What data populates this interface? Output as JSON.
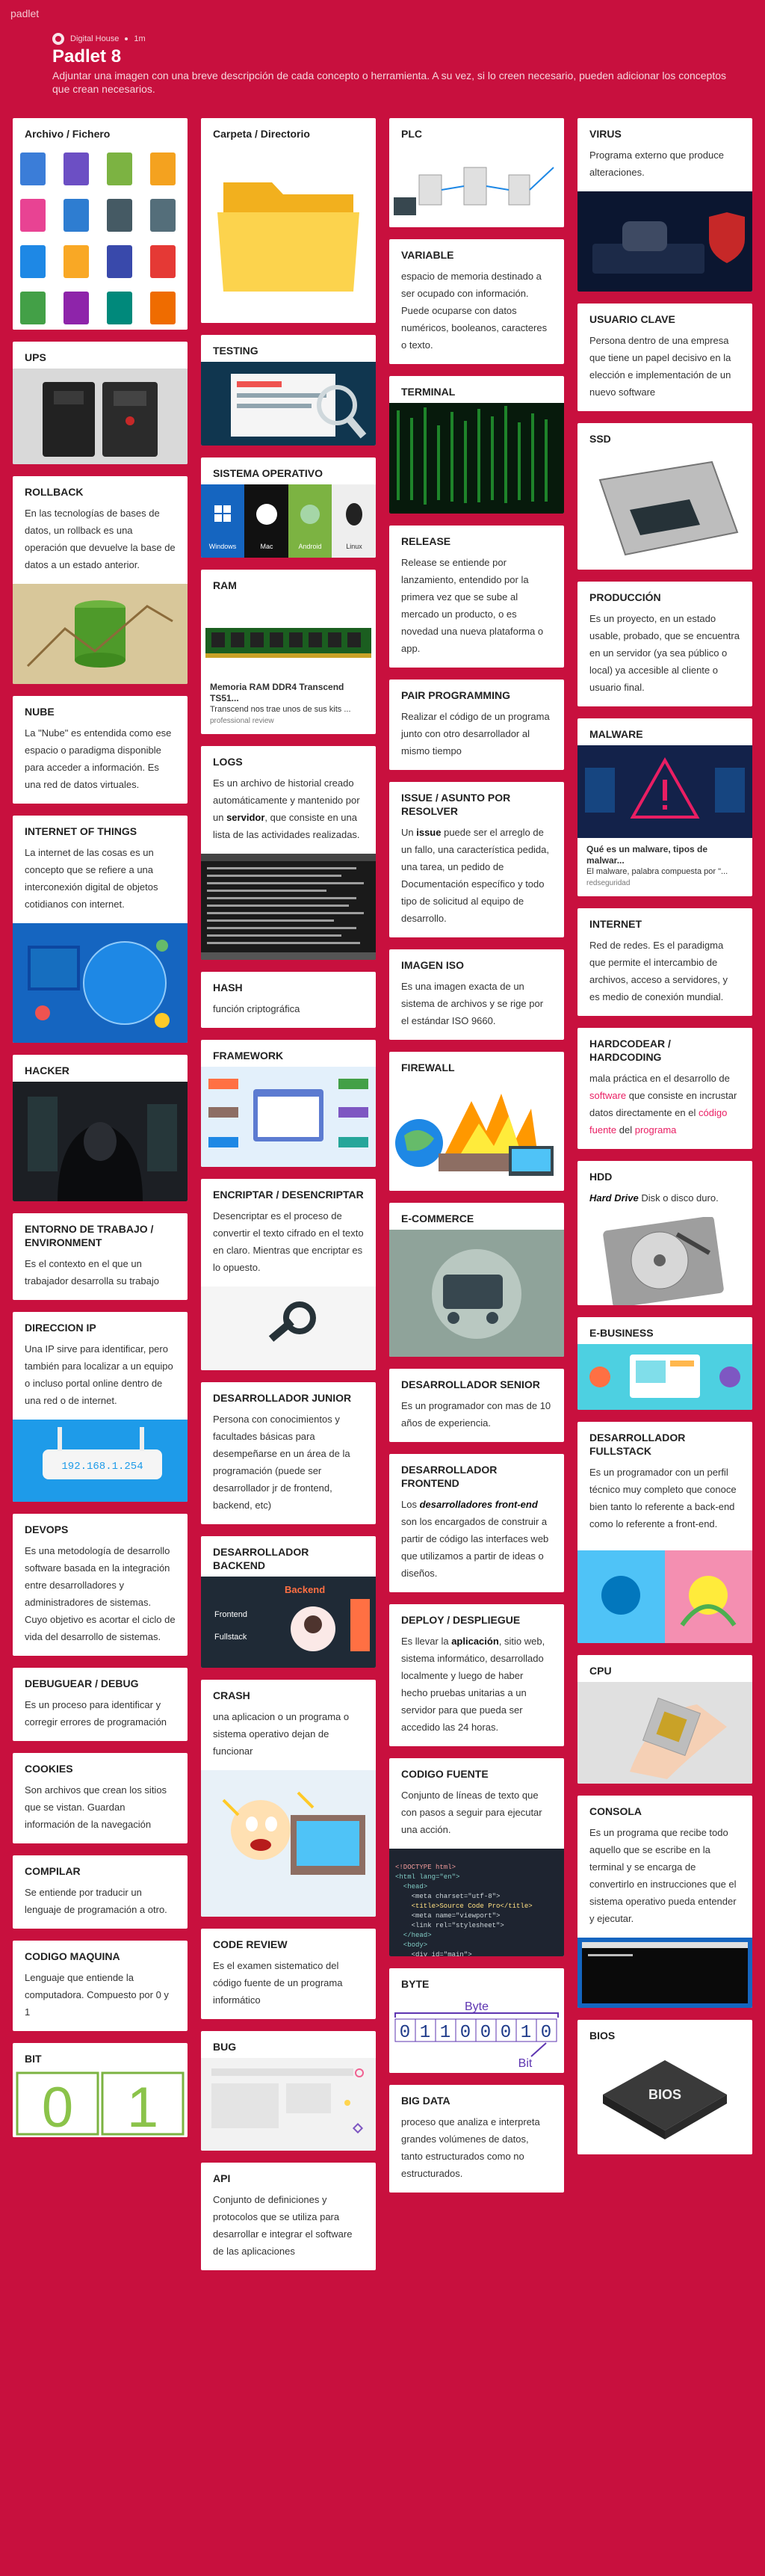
{
  "app": {
    "name": "padlet"
  },
  "board": {
    "author": "Digital House",
    "age": "1m",
    "title": "Padlet 8",
    "description": "Adjuntar una imagen con una breve descripción de cada concepto o herramienta. A su vez, si lo creen necesario, pueden adicionar los conceptos que crean necesarios."
  },
  "colors": {
    "background": "#c8103e",
    "accent": "#e91e63",
    "card": "#ffffff"
  },
  "col1": [
    {
      "title": "Archivo / Fichero"
    },
    {
      "title": "UPS"
    },
    {
      "title": "ROLLBACK",
      "body": "En las tecnologías de bases de datos, un rollback es una operación que devuelve la base de datos a un estado anterior."
    },
    {
      "title": "NUBE",
      "body": "La \"Nube\" es entendida como ese espacio o paradigma disponible para acceder a información. Es una red de datos virtuales."
    },
    {
      "title": "INTERNET OF THINGS",
      "body": "La internet de las cosas  es un concepto que se refiere a una interconexión digital de objetos cotidianos con internet."
    },
    {
      "title": "HACKER"
    },
    {
      "title": "ENTORNO DE TRABAJO / ENVIRONMENT",
      "body": "Es el contexto en el que un trabajador desarrolla su trabajo"
    },
    {
      "title": "DIRECCION IP",
      "body": "Una IP sirve para identificar, pero también para localizar a un equipo o incluso portal online dentro de una red o de internet.",
      "image_text": "192.168.1.254"
    },
    {
      "title": "DEVOPS",
      "body": "Es una metodología de desarrollo software basada en la integración entre desarrolladores y administradores de sistemas. Cuyo objetivo es acortar el ciclo de vida del desarrollo de sistemas."
    },
    {
      "title": "DEBUGUEAR / DEBUG",
      "body": "Es un proceso para identificar y corregir errores de programación"
    },
    {
      "title": "COOKIES",
      "body": "Son archivos que crean los sitios que se vistan. Guardan información de la navegación"
    },
    {
      "title": "COMPILAR",
      "body": "Se entiende por traducir un lenguaje de programación a otro."
    },
    {
      "title": "CODIGO MAQUINA",
      "body": "Lenguaje que entiende la computadora. Compuesto por 0 y 1"
    },
    {
      "title": "BIT",
      "image_text": [
        "0",
        "1"
      ]
    }
  ],
  "col2": [
    {
      "title": "Carpeta / Directorio"
    },
    {
      "title": "TESTING"
    },
    {
      "title": "SISTEMA OPERATIVO",
      "image_text": [
        "Windows",
        "Mac",
        "Android",
        "Linux"
      ]
    },
    {
      "title": "RAM",
      "link_title": "Memoria RAM DDR4 Transcend TS51...",
      "link_desc": "Transcend nos trae unos de sus kits ...",
      "link_source": "professional review"
    },
    {
      "title": "LOGS",
      "body_parts": [
        "Es un archivo de historial creado automáticamente y mantenido por un ",
        "servidor",
        ", que consiste en una lista de las actividades realizadas."
      ]
    },
    {
      "title": "HASH",
      "body": "función criptográfica"
    },
    {
      "title": "FRAMEWORK"
    },
    {
      "title": "ENCRIPTAR / DESENCRIPTAR",
      "body": "Desencriptar es el proceso de convertir el texto cifrado en el texto en claro. Mientras que encriptar es lo opuesto."
    },
    {
      "title": "DESARROLLADOR JUNIOR",
      "body": "Persona con conocimientos y facultades básicas para desempeñarse en un área de la programación (puede ser desarrollador jr de frontend, backend, etc)"
    },
    {
      "title": "DESARROLLADOR BACKEND",
      "image_text": [
        "Backend",
        "Frontend",
        "Fullstack"
      ]
    },
    {
      "title": "CRASH",
      "body": "una aplicacion o un programa o sistema operativo dejan de funcionar"
    },
    {
      "title": "CODE REVIEW",
      "body": "Es el examen sistematico del código fuente de un programa informático"
    },
    {
      "title": "BUG"
    },
    {
      "title": "API",
      "body": "Conjunto de definiciones y protocolos que se utiliza para desarrollar e integrar el software de las aplicaciones"
    }
  ],
  "col3": [
    {
      "title": "PLC"
    },
    {
      "title": "VARIABLE",
      "body": "espacio de memoria destinado a ser ocupado con información. Puede ocuparse con datos numéricos, booleanos, caracteres o texto."
    },
    {
      "title": "TERMINAL"
    },
    {
      "title": "RELEASE",
      "body": "Release se entiende por lanzamiento, entendido por la primera vez que se sube al mercado un producto, o es novedad una nueva plataforma o app."
    },
    {
      "title": "PAIR PROGRAMMING",
      "body": "Realizar el código de un programa junto con otro desarrollador al mismo tiempo"
    },
    {
      "title": "ISSUE / ASUNTO POR RESOLVER",
      "body_parts": [
        "Un ",
        "issue",
        " puede ser el arreglo de un fallo, una característica pedida, una tarea, un pedido de Documentación específico y todo tipo de solicitud al equipo de desarrollo."
      ]
    },
    {
      "title": "IMAGEN ISO",
      "body": "Es una imagen exacta de un sistema de archivos y se rige por el estándar ISO 9660."
    },
    {
      "title": "FIREWALL"
    },
    {
      "title": "E-COMMERCE"
    },
    {
      "title": "DESARROLLADOR SENIOR",
      "body": "Es un programador con mas de 10 años de experiencia."
    },
    {
      "title": "DESARROLLADOR FRONTEND",
      "body_parts": [
        "Los ",
        "desarrolladores front-end",
        " son los encargados de construir a partir de código las interfaces web que utilizamos a partir de ideas o diseños."
      ]
    },
    {
      "title": "DEPLOY / DESPLIEGUE",
      "body_parts": [
        "Es llevar la ",
        "aplicación",
        ", sitio web, sistema informático, desarrollado localmente y luego de haber hecho pruebas unitarias a un servidor para que pueda ser accedido las 24 horas."
      ]
    },
    {
      "title": "CODIGO FUENTE",
      "body": "Conjunto de líneas de texto que con pasos a seguir para ejecutar una acción.",
      "code_lines": [
        "<!DOCTYPE html>",
        "<html lang=\"en\">",
        "  <head>",
        "    <meta charset=\"utf-8\">",
        "    <title>Source Code Pro</title>",
        "    <meta name=\"viewport\">",
        "    <link rel=\"stylesheet\">",
        "  </head>",
        "  <body>",
        "    <div id=\"main\">"
      ]
    },
    {
      "title": "BYTE",
      "image_text": [
        "Byte",
        "0",
        "1",
        "1",
        "0",
        "0",
        "0",
        "1",
        "0",
        "Bit"
      ]
    },
    {
      "title": "BIG DATA",
      "body": " proceso que analiza e interpreta grandes volúmenes de datos, tanto estructurados como no estructurados."
    }
  ],
  "col4": [
    {
      "title": "VIRUS",
      "body": "Programa externo que produce alteraciones."
    },
    {
      "title": "USUARIO CLAVE",
      "body": "Persona dentro de una empresa que tiene un papel decisivo en la elección e implementación de un nuevo software"
    },
    {
      "title": "SSD"
    },
    {
      "title": "PRODUCCIÓN",
      "body": "Es un proyecto, en un estado usable, probado, que se encuentra en un servidor (ya sea público o local) ya accesible al cliente o usuario final."
    },
    {
      "title": "MALWARE",
      "link_title": "Qué es un malware, tipos de malwar...",
      "link_desc": "El malware, palabra compuesta por \"...",
      "link_source": "redseguridad"
    },
    {
      "title": "INTERNET",
      "body": "Red de redes. Es el paradigma que permite el intercambio de archivos, acceso a servidores, y es medio de conexión mundial."
    },
    {
      "title": "HARDCODEAR / HARDCODING",
      "body_parts": [
        "mala práctica en el desarrollo de ",
        "software",
        " que consiste en incrustar datos directamente en el ",
        "código fuente",
        " del ",
        "programa"
      ]
    },
    {
      "title": "HDD",
      "body_parts": [
        "Hard Drive",
        " Disk o disco duro."
      ]
    },
    {
      "title": "E-BUSINESS"
    },
    {
      "title": "DESARROLLADOR FULLSTACK",
      "body": "Es un programador con un perfil técnico muy completo que conoce bien tanto lo referente a back-end como lo referente a front-end."
    },
    {
      "title": "CPU"
    },
    {
      "title": "CONSOLA",
      "body": "Es un programa que recibe todo aquello que se escribe en la terminal y se encarga de convertirlo en instrucciones que el sistema operativo pueda entender y ejecutar."
    },
    {
      "title": "BIOS",
      "image_text": "BIOS"
    }
  ]
}
